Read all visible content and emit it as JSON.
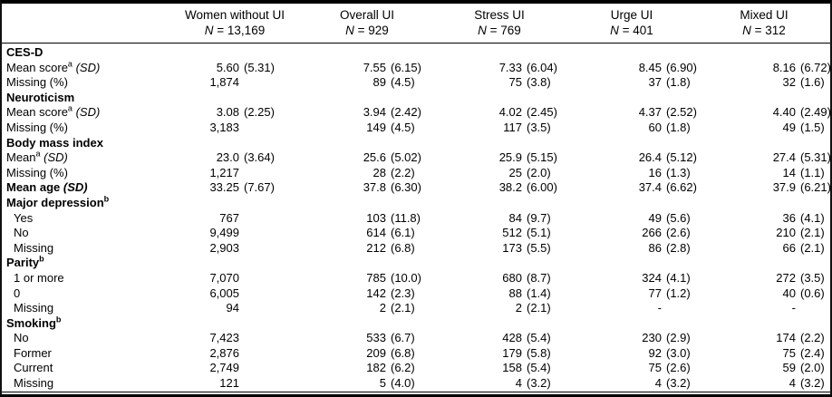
{
  "table": {
    "corner_label": "",
    "columns": [
      {
        "title": "Women without UI",
        "n_text": "N = 13,169"
      },
      {
        "title": "Overall UI",
        "n_text": "N = 929"
      },
      {
        "title": "Stress UI",
        "n_text": "N = 769"
      },
      {
        "title": "Urge UI",
        "n_text": "N = 401"
      },
      {
        "title": "Mixed UI",
        "n_text": "N = 312"
      }
    ],
    "rows": [
      {
        "label": "CES-D",
        "bold": true
      },
      {
        "label": "Mean score",
        "sup": "a",
        "unit": "(SD)",
        "cells": [
          [
            "5.60",
            "(5.31)"
          ],
          [
            "7.55",
            "(6.15)"
          ],
          [
            "7.33",
            "(6.04)"
          ],
          [
            "8.45",
            "(6.90)"
          ],
          [
            "8.16",
            "(6.72)"
          ]
        ]
      },
      {
        "label": "Missing (%)",
        "cells": [
          [
            "1,874",
            ""
          ],
          [
            "89",
            "(4.5)"
          ],
          [
            "75",
            "(3.8)"
          ],
          [
            "37",
            "(1.8)"
          ],
          [
            "32",
            "(1.6)"
          ]
        ]
      },
      {
        "label": "Neuroticism",
        "bold": true
      },
      {
        "label": "Mean score",
        "sup": "a",
        "unit": "(SD)",
        "cells": [
          [
            "3.08",
            "(2.25)"
          ],
          [
            "3.94",
            "(2.42)"
          ],
          [
            "4.02",
            "(2.45)"
          ],
          [
            "4.37",
            "(2.52)"
          ],
          [
            "4.40",
            "(2.49)"
          ]
        ]
      },
      {
        "label": "Missing (%)",
        "cells": [
          [
            "3,183",
            ""
          ],
          [
            "149",
            "(4.5)"
          ],
          [
            "117",
            "(3.5)"
          ],
          [
            "60",
            "(1.8)"
          ],
          [
            "49",
            "(1.5)"
          ]
        ]
      },
      {
        "label": "Body mass index",
        "bold": true
      },
      {
        "label": "Mean",
        "sup": "a",
        "unit": "(SD)",
        "cells": [
          [
            "23.0",
            "(3.64)"
          ],
          [
            "25.6",
            "(5.02)"
          ],
          [
            "25.9",
            "(5.15)"
          ],
          [
            "26.4",
            "(5.12)"
          ],
          [
            "27.4",
            "(5.31)"
          ]
        ]
      },
      {
        "label": "Missing (%)",
        "cells": [
          [
            "1,217",
            ""
          ],
          [
            "28",
            "(2.2)"
          ],
          [
            "25",
            "(2.0)"
          ],
          [
            "16",
            "(1.3)"
          ],
          [
            "14",
            "(1.1)"
          ]
        ]
      },
      {
        "label": "Mean age",
        "bold": true,
        "unit": "(SD)",
        "cells": [
          [
            "33.25",
            "(7.67)"
          ],
          [
            "37.8",
            "(6.30)"
          ],
          [
            "38.2",
            "(6.00)"
          ],
          [
            "37.4",
            "(6.62)"
          ],
          [
            "37.9",
            "(6.21)"
          ]
        ]
      },
      {
        "label": "Major depression",
        "bold": true,
        "sup": "b"
      },
      {
        "label": "Yes",
        "indent": true,
        "cells": [
          [
            "767",
            ""
          ],
          [
            "103",
            "(11.8)"
          ],
          [
            "84",
            "(9.7)"
          ],
          [
            "49",
            "(5.6)"
          ],
          [
            "36",
            "(4.1)"
          ]
        ]
      },
      {
        "label": "No",
        "indent": true,
        "cells": [
          [
            "9,499",
            ""
          ],
          [
            "614",
            "(6.1)"
          ],
          [
            "512",
            "(5.1)"
          ],
          [
            "266",
            "(2.6)"
          ],
          [
            "210",
            "(2.1)"
          ]
        ]
      },
      {
        "label": "Missing",
        "indent": true,
        "cells": [
          [
            "2,903",
            ""
          ],
          [
            "212",
            "(6.8)"
          ],
          [
            "173",
            "(5.5)"
          ],
          [
            "86",
            "(2.8)"
          ],
          [
            "66",
            "(2.1)"
          ]
        ]
      },
      {
        "label": "Parity",
        "bold": true,
        "sup": "b"
      },
      {
        "label": "1 or more",
        "indent": true,
        "cells": [
          [
            "7,070",
            ""
          ],
          [
            "785",
            "(10.0)"
          ],
          [
            "680",
            "(8.7)"
          ],
          [
            "324",
            "(4.1)"
          ],
          [
            "272",
            "(3.5)"
          ]
        ]
      },
      {
        "label": "0",
        "indent": true,
        "cells": [
          [
            "6,005",
            ""
          ],
          [
            "142",
            "(2.3)"
          ],
          [
            "88",
            "(1.4)"
          ],
          [
            "77",
            "(1.2)"
          ],
          [
            "40",
            "(0.6)"
          ]
        ]
      },
      {
        "label": "Missing",
        "indent": true,
        "cells": [
          [
            "94",
            ""
          ],
          [
            "2",
            "(2.1)"
          ],
          [
            "2",
            "(2.1)"
          ],
          [
            "-",
            ""
          ],
          [
            "-",
            ""
          ]
        ]
      },
      {
        "label": "Smoking",
        "bold": true,
        "sup": "b"
      },
      {
        "label": "No",
        "indent": true,
        "cells": [
          [
            "7,423",
            ""
          ],
          [
            "533",
            "(6.7)"
          ],
          [
            "428",
            "(5.4)"
          ],
          [
            "230",
            "(2.9)"
          ],
          [
            "174",
            "(2.2)"
          ]
        ]
      },
      {
        "label": "Former",
        "indent": true,
        "cells": [
          [
            "2,876",
            ""
          ],
          [
            "209",
            "(6.8)"
          ],
          [
            "179",
            "(5.8)"
          ],
          [
            "92",
            "(3.0)"
          ],
          [
            "75",
            "(2.4)"
          ]
        ]
      },
      {
        "label": "Current",
        "indent": true,
        "cells": [
          [
            "2,749",
            ""
          ],
          [
            "182",
            "(6.2)"
          ],
          [
            "158",
            "(5.4)"
          ],
          [
            "75",
            "(2.6)"
          ],
          [
            "59",
            "(2.0)"
          ]
        ]
      },
      {
        "label": "Missing",
        "indent": true,
        "cells": [
          [
            "121",
            ""
          ],
          [
            "5",
            "(4.0)"
          ],
          [
            "4",
            "(3.2)"
          ],
          [
            "4",
            "(3.2)"
          ],
          [
            "4",
            "(3.2)"
          ]
        ]
      }
    ]
  }
}
